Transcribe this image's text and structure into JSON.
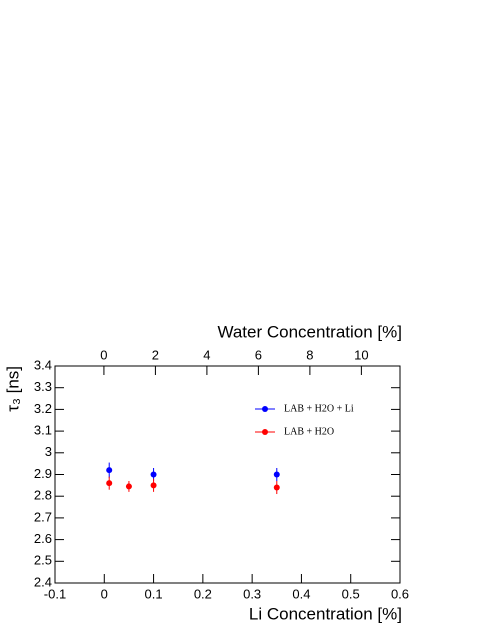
{
  "chart_data": {
    "type": "scatter",
    "xlabel": "Li Concentration [%]",
    "ylabel": "τ₃ [ns]",
    "x2label": "Water Concentration [%]",
    "xlim": [
      -0.1,
      0.6
    ],
    "xticks": [
      -0.1,
      0,
      0.1,
      0.2,
      0.3,
      0.4,
      0.5,
      0.6
    ],
    "x2lim": [
      -1.9,
      11.5
    ],
    "x2ticks": [
      0,
      2,
      4,
      6,
      8,
      10
    ],
    "ylim": [
      2.4,
      3.4
    ],
    "yticks": [
      2.4,
      2.5,
      2.6,
      2.7,
      2.8,
      2.9,
      3,
      3.1,
      3.2,
      3.3,
      3.4
    ],
    "legend": "upper right",
    "series": [
      {
        "name": "LAB + H2O + Li",
        "color": "#0000ff",
        "x": [
          0.01,
          0.1,
          0.35
        ],
        "values": [
          2.92,
          2.9,
          2.9
        ],
        "errors": [
          0.035,
          0.03,
          0.03
        ]
      },
      {
        "name": "LAB + H2O",
        "color": "#ff0000",
        "x": [
          0.01,
          0.05,
          0.1,
          0.35
        ],
        "values": [
          2.86,
          2.845,
          2.85,
          2.84
        ],
        "errors": [
          0.03,
          0.025,
          0.03,
          0.03
        ]
      }
    ]
  }
}
